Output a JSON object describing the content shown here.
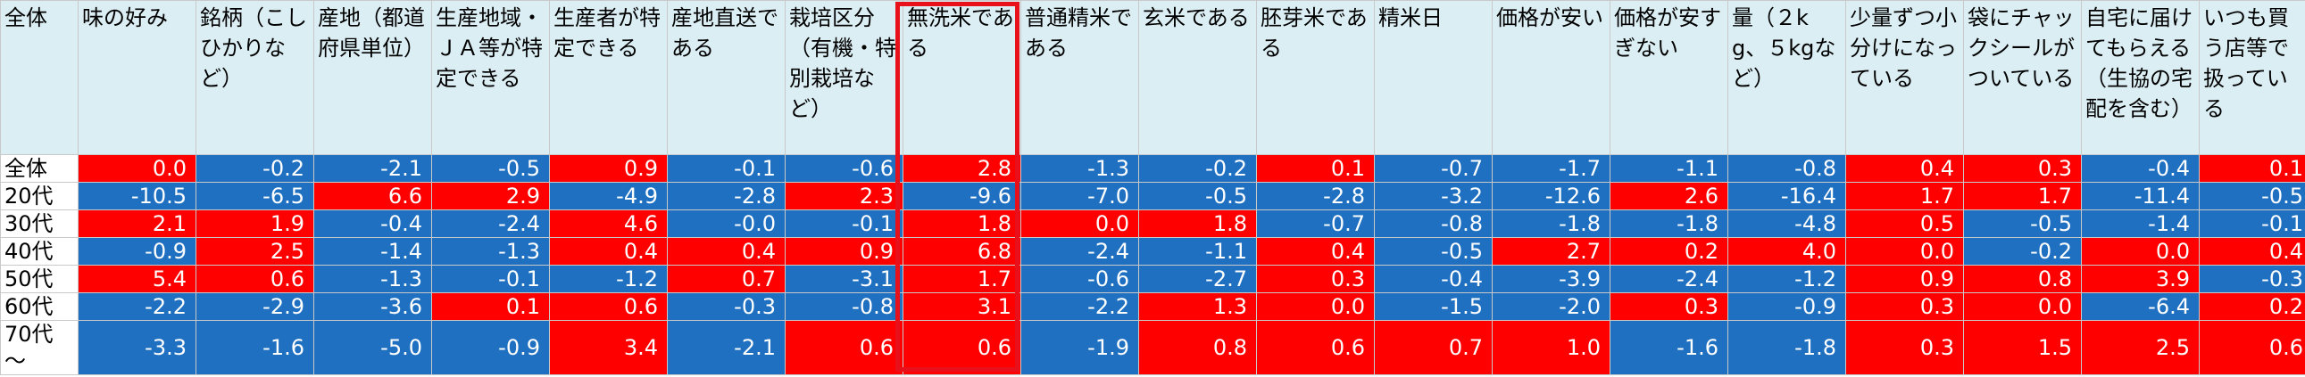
{
  "colors": {
    "positive": "#ff0000",
    "negative": "#1f70c1",
    "header_bg": "#dbeef4",
    "highlight": "#e8101a"
  },
  "corner_label": "全体",
  "columns": [
    "味の好み",
    "銘柄（こしひかりなど）",
    "産地（都道府県単位）",
    "生産地域・ＪＡ等が特定できる",
    "生産者が特定できる",
    "産地直送である",
    "栽培区分（有機・特別栽培など）",
    "無洗米である",
    "普通精米である",
    "玄米である",
    "胚芽米である",
    "精米日",
    "価格が安い",
    "価格が安すぎない",
    "量（２kg、５kgなど）",
    "少量ずつ小分けになっている",
    "袋にチャックシールがついている",
    "自宅に届けてもらえる（生協の宅配を含む）",
    "いつも買う店等で扱っている"
  ],
  "rows": [
    {
      "label": "全体",
      "values": [
        "0.0",
        "-0.2",
        "-2.1",
        "-0.5",
        "0.9",
        "-0.1",
        "-0.6",
        "2.8",
        "-1.3",
        "-0.2",
        "0.1",
        "-0.7",
        "-1.7",
        "-1.1",
        "-0.8",
        "0.4",
        "0.3",
        "-0.4",
        "0.1"
      ],
      "signs": [
        "p",
        "n",
        "n",
        "n",
        "p",
        "n",
        "n",
        "p",
        "n",
        "n",
        "p",
        "n",
        "n",
        "n",
        "n",
        "p",
        "p",
        "n",
        "p"
      ]
    },
    {
      "label": "20代",
      "values": [
        "-10.5",
        "-6.5",
        "6.6",
        "2.9",
        "-4.9",
        "-2.8",
        "2.3",
        "-9.6",
        "-7.0",
        "-0.5",
        "-2.8",
        "-3.2",
        "-12.6",
        "2.6",
        "-16.4",
        "1.7",
        "1.7",
        "-11.4",
        "-0.5"
      ],
      "signs": [
        "n",
        "n",
        "p",
        "p",
        "n",
        "n",
        "p",
        "n",
        "n",
        "n",
        "n",
        "n",
        "n",
        "p",
        "n",
        "p",
        "p",
        "n",
        "n"
      ]
    },
    {
      "label": "30代",
      "values": [
        "2.1",
        "1.9",
        "-0.4",
        "-2.4",
        "4.6",
        "-0.0",
        "-0.1",
        "1.8",
        "0.0",
        "1.8",
        "-0.7",
        "-0.8",
        "-1.8",
        "-1.8",
        "-4.8",
        "0.5",
        "-0.5",
        "-1.4",
        "-0.1"
      ],
      "signs": [
        "p",
        "p",
        "n",
        "n",
        "p",
        "n",
        "n",
        "p",
        "p",
        "p",
        "n",
        "n",
        "n",
        "n",
        "n",
        "p",
        "n",
        "n",
        "n"
      ]
    },
    {
      "label": "40代",
      "values": [
        "-0.9",
        "2.5",
        "-1.4",
        "-1.3",
        "0.4",
        "0.4",
        "0.9",
        "6.8",
        "-2.4",
        "-1.1",
        "0.4",
        "-0.5",
        "2.7",
        "0.2",
        "4.0",
        "0.0",
        "-0.2",
        "0.0",
        "0.4"
      ],
      "signs": [
        "n",
        "p",
        "n",
        "n",
        "p",
        "p",
        "p",
        "p",
        "n",
        "n",
        "p",
        "n",
        "p",
        "p",
        "p",
        "p",
        "n",
        "p",
        "p"
      ]
    },
    {
      "label": "50代",
      "values": [
        "5.4",
        "0.6",
        "-1.3",
        "-0.1",
        "-1.2",
        "0.7",
        "-3.1",
        "1.7",
        "-0.6",
        "-2.7",
        "0.3",
        "-0.4",
        "-3.9",
        "-2.4",
        "-1.2",
        "0.9",
        "0.8",
        "3.9",
        "-0.3"
      ],
      "signs": [
        "p",
        "p",
        "n",
        "n",
        "n",
        "p",
        "n",
        "p",
        "n",
        "n",
        "p",
        "n",
        "n",
        "n",
        "n",
        "p",
        "p",
        "p",
        "n"
      ]
    },
    {
      "label": "60代",
      "values": [
        "-2.2",
        "-2.9",
        "-3.6",
        "0.1",
        "0.6",
        "-0.3",
        "-0.8",
        "3.1",
        "-2.2",
        "1.3",
        "0.0",
        "-1.5",
        "-2.0",
        "0.3",
        "-0.9",
        "0.3",
        "0.0",
        "-6.4",
        "0.2"
      ],
      "signs": [
        "n",
        "n",
        "n",
        "p",
        "p",
        "n",
        "n",
        "p",
        "n",
        "p",
        "p",
        "n",
        "n",
        "p",
        "n",
        "p",
        "p",
        "n",
        "p"
      ]
    },
    {
      "label": "70代～",
      "values": [
        "-3.3",
        "-1.6",
        "-5.0",
        "-0.9",
        "3.4",
        "-2.1",
        "0.6",
        "0.6",
        "-1.9",
        "0.8",
        "0.6",
        "0.7",
        "1.0",
        "-1.6",
        "-1.8",
        "0.3",
        "1.5",
        "2.5",
        "0.6"
      ],
      "signs": [
        "n",
        "n",
        "n",
        "n",
        "p",
        "n",
        "p",
        "p",
        "n",
        "p",
        "p",
        "p",
        "p",
        "n",
        "n",
        "p",
        "p",
        "p",
        "p"
      ]
    }
  ],
  "highlighted_column": "無洗米である"
}
